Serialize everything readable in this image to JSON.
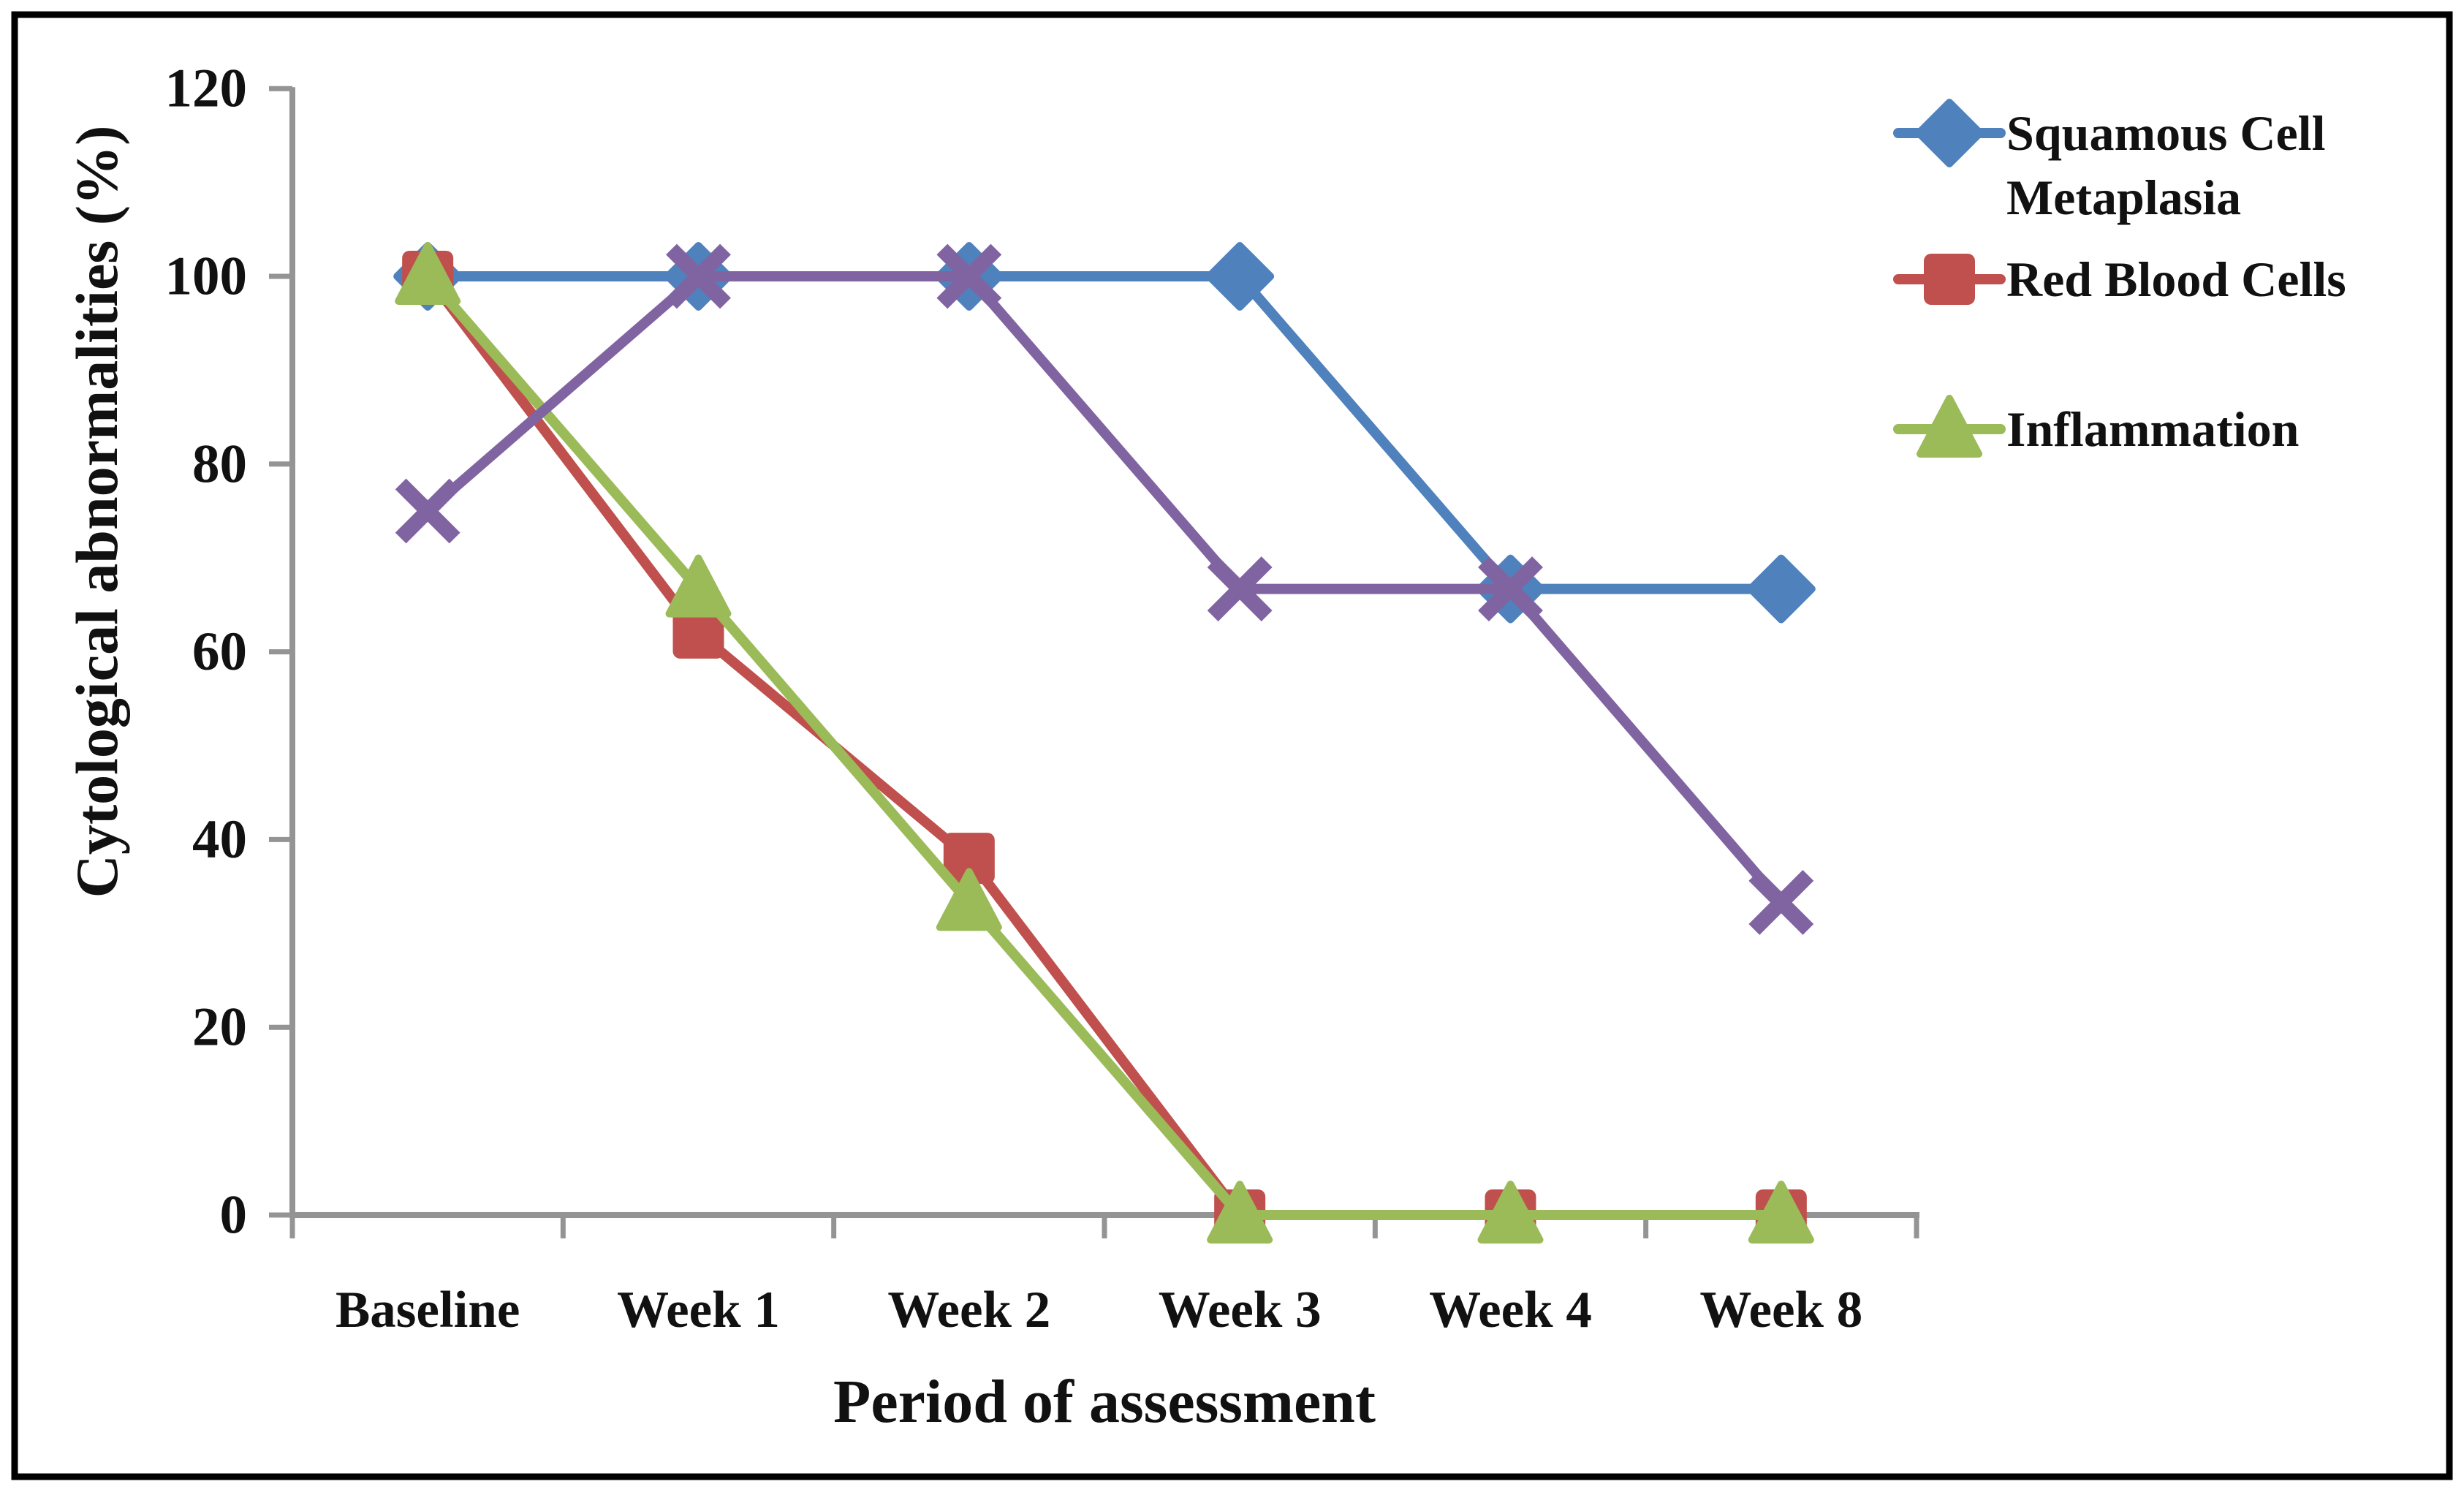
{
  "figure": {
    "background": "#FFFFFF",
    "border_color": "#000000"
  },
  "chart_data": {
    "type": "line",
    "title": "",
    "xlabel": "Period of assessment",
    "ylabel": "Cytological abnormalities (%)",
    "categories": [
      "Baseline",
      "Week 1",
      "Week 2",
      "Week 3",
      "Week 4",
      "Week 8"
    ],
    "ylim": [
      0,
      120
    ],
    "yticks": [
      0,
      20,
      40,
      60,
      80,
      100,
      120
    ],
    "grid": false,
    "legend_position": "right",
    "axis_color": "#949494",
    "text_color": "#111111",
    "series": [
      {
        "name": "Squamous Cell Metaplasia",
        "legend_label_lines": [
          "Squamous Cell",
          "Metaplasia"
        ],
        "color": "#4F81BD",
        "marker": "diamond",
        "in_legend": true,
        "values": [
          100,
          100,
          100,
          100,
          66.7,
          66.7
        ]
      },
      {
        "name": "Red Blood Cells",
        "legend_label_lines": [
          "Red Blood Cells"
        ],
        "color": "#C0504D",
        "marker": "square",
        "in_legend": true,
        "values": [
          100,
          62,
          38,
          0,
          0,
          0
        ]
      },
      {
        "name": "Inflammation",
        "legend_label_lines": [
          "Inflammation"
        ],
        "color": "#9BBB59",
        "marker": "triangle",
        "in_legend": true,
        "values": [
          100,
          66.7,
          33.3,
          0,
          0,
          0
        ]
      },
      {
        "name": "",
        "legend_label_lines": [],
        "color": "#8064A2",
        "marker": "x",
        "in_legend": false,
        "values": [
          75,
          100,
          100,
          66.7,
          66.7,
          33.3
        ]
      }
    ]
  }
}
